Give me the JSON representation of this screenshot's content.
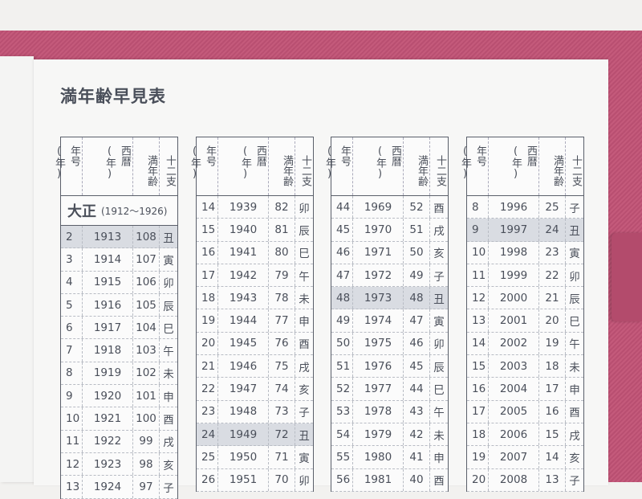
{
  "title": "満年齢早見表",
  "headers": [
    "年号(年)",
    "西暦(年)",
    "満年齢",
    "十二支"
  ],
  "tables": [
    {
      "era": "大正",
      "era_range": "(1912〜1926)",
      "highlight": 0,
      "rows": [
        [
          "2",
          "1913",
          "108",
          "丑"
        ],
        [
          "3",
          "1914",
          "107",
          "寅"
        ],
        [
          "4",
          "1915",
          "106",
          "卯"
        ],
        [
          "5",
          "1916",
          "105",
          "辰"
        ],
        [
          "6",
          "1917",
          "104",
          "巳"
        ],
        [
          "7",
          "1918",
          "103",
          "午"
        ],
        [
          "8",
          "1919",
          "102",
          "未"
        ],
        [
          "9",
          "1920",
          "101",
          "申"
        ],
        [
          "10",
          "1921",
          "100",
          "酉"
        ],
        [
          "11",
          "1922",
          "99",
          "戌"
        ],
        [
          "12",
          "1923",
          "98",
          "亥"
        ],
        [
          "13",
          "1924",
          "97",
          "子"
        ]
      ]
    },
    {
      "highlight": 10,
      "rows": [
        [
          "14",
          "1939",
          "82",
          "卯"
        ],
        [
          "15",
          "1940",
          "81",
          "辰"
        ],
        [
          "16",
          "1941",
          "80",
          "巳"
        ],
        [
          "17",
          "1942",
          "79",
          "午"
        ],
        [
          "18",
          "1943",
          "78",
          "未"
        ],
        [
          "19",
          "1944",
          "77",
          "申"
        ],
        [
          "20",
          "1945",
          "76",
          "酉"
        ],
        [
          "21",
          "1946",
          "75",
          "戌"
        ],
        [
          "22",
          "1947",
          "74",
          "亥"
        ],
        [
          "23",
          "1948",
          "73",
          "子"
        ],
        [
          "24",
          "1949",
          "72",
          "丑"
        ],
        [
          "25",
          "1950",
          "71",
          "寅"
        ],
        [
          "26",
          "1951",
          "70",
          "卯"
        ]
      ]
    },
    {
      "highlight": 4,
      "rows": [
        [
          "44",
          "1969",
          "52",
          "酉"
        ],
        [
          "45",
          "1970",
          "51",
          "戌"
        ],
        [
          "46",
          "1971",
          "50",
          "亥"
        ],
        [
          "47",
          "1972",
          "49",
          "子"
        ],
        [
          "48",
          "1973",
          "48",
          "丑"
        ],
        [
          "49",
          "1974",
          "47",
          "寅"
        ],
        [
          "50",
          "1975",
          "46",
          "卯"
        ],
        [
          "51",
          "1976",
          "45",
          "辰"
        ],
        [
          "52",
          "1977",
          "44",
          "巳"
        ],
        [
          "53",
          "1978",
          "43",
          "午"
        ],
        [
          "54",
          "1979",
          "42",
          "未"
        ],
        [
          "55",
          "1980",
          "41",
          "申"
        ],
        [
          "56",
          "1981",
          "40",
          "酉"
        ]
      ]
    },
    {
      "highlight": 1,
      "rows": [
        [
          "8",
          "1996",
          "25",
          "子"
        ],
        [
          "9",
          "1997",
          "24",
          "丑"
        ],
        [
          "10",
          "1998",
          "23",
          "寅"
        ],
        [
          "11",
          "1999",
          "22",
          "卯"
        ],
        [
          "12",
          "2000",
          "21",
          "辰"
        ],
        [
          "13",
          "2001",
          "20",
          "巳"
        ],
        [
          "14",
          "2002",
          "19",
          "午"
        ],
        [
          "15",
          "2003",
          "18",
          "未"
        ],
        [
          "16",
          "2004",
          "17",
          "申"
        ],
        [
          "17",
          "2005",
          "16",
          "酉"
        ],
        [
          "18",
          "2006",
          "15",
          "戌"
        ],
        [
          "19",
          "2007",
          "14",
          "亥"
        ],
        [
          "20",
          "2008",
          "13",
          "子"
        ]
      ]
    }
  ]
}
